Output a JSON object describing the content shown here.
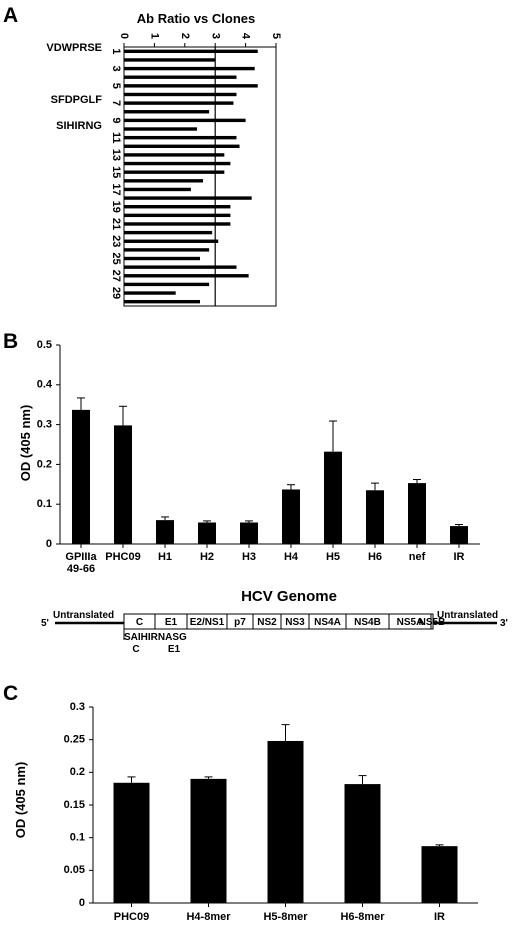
{
  "panels": {
    "a": {
      "letter": "A"
    },
    "b": {
      "letter": "B"
    },
    "c": {
      "letter": "C"
    }
  },
  "chart_data": [
    {
      "id": "A",
      "type": "bar",
      "orientation": "horizontal",
      "title": "Ab Ratio vs Clones",
      "xlim": [
        0,
        5
      ],
      "xticks": [
        "0",
        "1",
        "2",
        "3",
        "4",
        "5"
      ],
      "reference_line": 3,
      "clones": [
        1,
        2,
        3,
        4,
        5,
        6,
        7,
        8,
        9,
        10,
        11,
        12,
        13,
        14,
        15,
        16,
        17,
        18,
        19,
        20,
        21,
        22,
        23,
        24,
        25,
        26,
        27,
        28,
        29,
        30
      ],
      "clone_tick_labels": [
        "1",
        "3",
        "5",
        "7",
        "9",
        "11",
        "13",
        "15",
        "17",
        "19",
        "21",
        "23",
        "25",
        "27",
        "29"
      ],
      "values": [
        4.4,
        3.0,
        4.3,
        3.7,
        4.4,
        3.7,
        3.6,
        2.8,
        4.0,
        2.4,
        3.7,
        3.8,
        3.3,
        3.5,
        3.3,
        2.6,
        2.2,
        4.2,
        3.5,
        3.5,
        3.5,
        2.9,
        3.1,
        2.8,
        2.5,
        3.7,
        4.1,
        2.8,
        1.7,
        2.5
      ],
      "annotations": [
        {
          "clone": 1,
          "text": "VDWPRSE"
        },
        {
          "clone": 7,
          "text": "SFDPGLF"
        },
        {
          "clone": 10,
          "text": "SIHIRNG"
        }
      ],
      "grid": false
    },
    {
      "id": "B",
      "type": "bar",
      "categories": [
        "GPIIIa 49-66",
        "PHC09",
        "H1",
        "H2",
        "H3",
        "H4",
        "H5",
        "H6",
        "nef",
        "IR"
      ],
      "category_lines": [
        [
          "GPIIIa",
          "49-66"
        ],
        [
          "PHC09"
        ],
        [
          "H1"
        ],
        [
          "H2"
        ],
        [
          "H3"
        ],
        [
          "H4"
        ],
        [
          "H5"
        ],
        [
          "H6"
        ],
        [
          "nef"
        ],
        [
          "IR"
        ]
      ],
      "values": [
        0.337,
        0.298,
        0.06,
        0.054,
        0.054,
        0.137,
        0.232,
        0.135,
        0.153,
        0.045
      ],
      "errors": [
        0.03,
        0.048,
        0.008,
        0.004,
        0.004,
        0.012,
        0.077,
        0.018,
        0.009,
        0.004
      ],
      "ylabel": "OD (405 nm)",
      "ylim": [
        0,
        0.5
      ],
      "yticks": [
        "0",
        "0.1",
        "0.2",
        "0.3",
        "0.4",
        "0.5"
      ],
      "grid": false
    },
    {
      "id": "C",
      "type": "bar",
      "categories": [
        "PHC09",
        "H4-8mer",
        "H5-8mer",
        "H6-8mer",
        "IR"
      ],
      "values": [
        0.184,
        0.19,
        0.248,
        0.182,
        0.087
      ],
      "errors": [
        0.009,
        0.003,
        0.025,
        0.013,
        0.002
      ],
      "ylabel": "OD (405 nm)",
      "ylim": [
        0,
        0.3
      ],
      "yticks": [
        "0",
        "0.05",
        "0.1",
        "0.15",
        "0.2",
        "0.25",
        "0.3"
      ],
      "grid": false
    }
  ],
  "genome": {
    "title": "HCV Genome",
    "five_prime": "5'",
    "three_prime": "3'",
    "left_utr": "Untranslated",
    "right_utr": "Untranslated",
    "regions": [
      "C",
      "E1",
      "E2/NS1",
      "p7",
      "NS2",
      "NS3",
      "NS4A",
      "NS4B",
      "NS5A",
      "NS5B"
    ],
    "peptide": "SAIHIRNASG",
    "peptide_regions": [
      "C",
      "E1"
    ]
  }
}
